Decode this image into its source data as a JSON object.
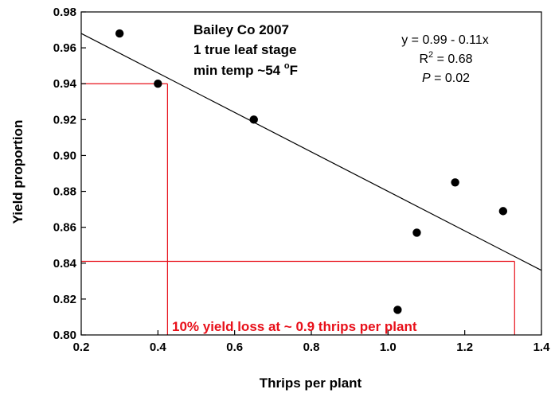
{
  "chart_data": {
    "type": "scatter",
    "xlabel": "Thrips per plant",
    "ylabel": "Yield proportion",
    "xlim": [
      0.2,
      1.4
    ],
    "ylim": [
      0.8,
      0.98
    ],
    "x_ticks": [
      "0.2",
      "0.4",
      "0.6",
      "0.8",
      "1.0",
      "1.2",
      "1.4"
    ],
    "y_ticks": [
      "0.80",
      "0.82",
      "0.84",
      "0.86",
      "0.88",
      "0.90",
      "0.92",
      "0.94",
      "0.96",
      "0.98"
    ],
    "grid": false,
    "points": [
      {
        "x": 0.3,
        "y": 0.968
      },
      {
        "x": 0.4,
        "y": 0.94
      },
      {
        "x": 0.65,
        "y": 0.92
      },
      {
        "x": 1.025,
        "y": 0.814
      },
      {
        "x": 1.075,
        "y": 0.857
      },
      {
        "x": 1.175,
        "y": 0.885
      },
      {
        "x": 1.3,
        "y": 0.869
      }
    ],
    "regression": {
      "intercept": 0.99,
      "slope": -0.11,
      "x_range": [
        0.2,
        1.4
      ]
    },
    "reference_lines": [
      {
        "x": 0.425,
        "y": 0.94
      },
      {
        "x": 1.33,
        "y": 0.841
      }
    ],
    "title_lines": [
      "Bailey Co 2007",
      "1 true leaf stage",
      "min temp ~54 °F"
    ],
    "title_parts": {
      "temp_prefix": "min temp ~54 ",
      "degree": "o",
      "unit": "F"
    },
    "equation": "y = 0.99 - 0.11x",
    "r2": {
      "prefix": "R",
      "sup": "2",
      "value": " = 0.68"
    },
    "p": {
      "symbol": "P",
      "value": " = 0.02"
    },
    "annotation": "10% yield loss at ~ 0.9 thrips per plant",
    "colors": {
      "points": "#000000",
      "regression": "#000000",
      "reference": "#e8101a",
      "annotation": "#e8101a"
    }
  }
}
